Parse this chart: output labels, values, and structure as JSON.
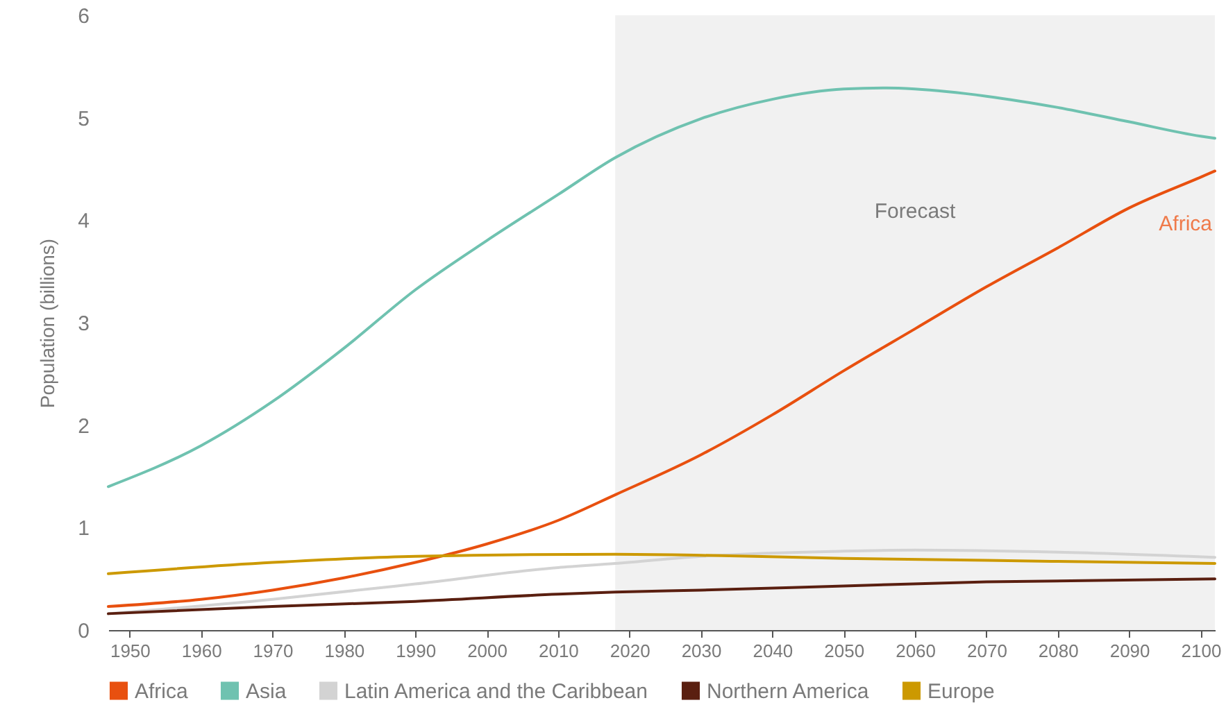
{
  "chart_data": {
    "type": "line",
    "ylabel": "Population (billions)",
    "xlim": [
      1947,
      2102
    ],
    "xticks": [
      1950,
      1960,
      1970,
      1980,
      1990,
      2000,
      2010,
      2020,
      2030,
      2040,
      2050,
      2060,
      2070,
      2080,
      2090,
      2100
    ],
    "ylim": [
      0,
      6
    ],
    "yticks": [
      0,
      1,
      2,
      3,
      4,
      5,
      6
    ],
    "grid": false,
    "legend": "bottom",
    "marker": "none",
    "line_style": "solid",
    "bands": [
      {
        "axis": "x",
        "from": 2018,
        "to": 2102,
        "label": "Forecast",
        "color": "#f1f1f1"
      }
    ],
    "annotations": [
      "Africa"
    ],
    "series": [
      {
        "name": "Africa",
        "color": "#e8500f",
        "x": [
          1947,
          1960,
          1970,
          1980,
          1990,
          2000,
          2010,
          2018,
          2030,
          2040,
          2050,
          2060,
          2070,
          2080,
          2090,
          2100,
          2102
        ],
        "values": [
          0.23,
          0.3,
          0.39,
          0.51,
          0.66,
          0.84,
          1.07,
          1.32,
          1.71,
          2.1,
          2.53,
          2.94,
          3.35,
          3.73,
          4.12,
          4.42,
          4.48
        ]
      },
      {
        "name": "Asia",
        "color": "#6fc2b0",
        "x": [
          1947,
          1960,
          1970,
          1980,
          1990,
          2000,
          2010,
          2018,
          2030,
          2040,
          2050,
          2056,
          2060,
          2070,
          2080,
          2090,
          2100,
          2102
        ],
        "values": [
          1.4,
          1.8,
          2.23,
          2.75,
          3.32,
          3.8,
          4.25,
          4.61,
          4.99,
          5.18,
          5.28,
          5.29,
          5.28,
          5.21,
          5.1,
          4.96,
          4.82,
          4.8
        ]
      },
      {
        "name": "Latin America and the Caribbean",
        "color": "#d3d3d3",
        "x": [
          1947,
          1970,
          1990,
          2010,
          2018,
          2030,
          2050,
          2060,
          2080,
          2102
        ],
        "values": [
          0.16,
          0.3,
          0.45,
          0.61,
          0.65,
          0.72,
          0.77,
          0.78,
          0.76,
          0.71
        ]
      },
      {
        "name": "Northern America",
        "color": "#5a1f10",
        "x": [
          1947,
          1970,
          1990,
          2010,
          2018,
          2030,
          2050,
          2070,
          2102
        ],
        "values": [
          0.16,
          0.23,
          0.28,
          0.35,
          0.37,
          0.39,
          0.43,
          0.47,
          0.5
        ]
      },
      {
        "name": "Europe",
        "color": "#cc9900",
        "x": [
          1947,
          1970,
          1990,
          2018,
          2030,
          2050,
          2070,
          2102
        ],
        "values": [
          0.55,
          0.66,
          0.72,
          0.74,
          0.73,
          0.7,
          0.68,
          0.65
        ]
      }
    ]
  }
}
